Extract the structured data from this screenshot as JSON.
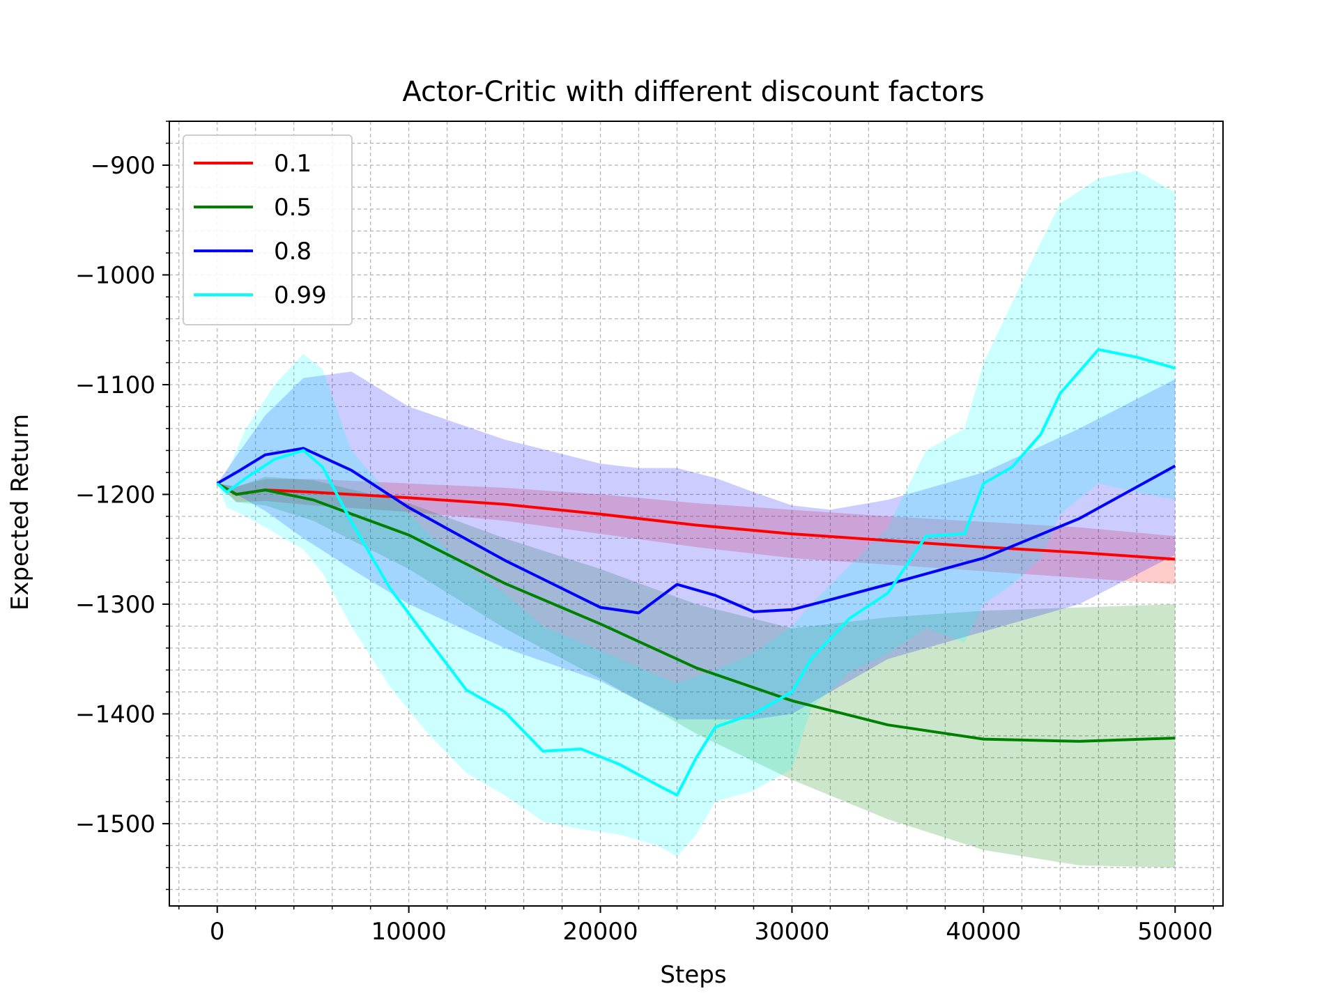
{
  "chart_data": {
    "type": "line",
    "title": "Actor-Critic with different discount factors",
    "xlabel": "Steps",
    "ylabel": "Expected Return",
    "xlim": [
      -2500,
      52500
    ],
    "ylim": [
      -1575,
      -860
    ],
    "xticks": [
      0,
      10000,
      20000,
      30000,
      40000,
      50000
    ],
    "xtick_labels": [
      "0",
      "10000",
      "20000",
      "30000",
      "40000",
      "50000"
    ],
    "yticks": [
      -1500,
      -1400,
      -1300,
      -1200,
      -1100,
      -1000,
      -900
    ],
    "ytick_labels": [
      "−1500",
      "−1400",
      "−1300",
      "−1200",
      "−1100",
      "−1000",
      "−900"
    ],
    "grid": true,
    "minor_grid": true,
    "legend_position": "top-left",
    "series": [
      {
        "name": "0.1",
        "color": "#ff0000",
        "x": [
          0,
          1000,
          2500,
          5000,
          10000,
          15000,
          20000,
          25000,
          30000,
          35000,
          40000,
          45000,
          50000
        ],
        "y": [
          -1190,
          -1200,
          -1196,
          -1198,
          -1203,
          -1209,
          -1218,
          -1228,
          -1236,
          -1242,
          -1248,
          -1253,
          -1259
        ],
        "band_upper": [
          -1190,
          -1193,
          -1186,
          -1186,
          -1190,
          -1194,
          -1200,
          -1208,
          -1214,
          -1220,
          -1225,
          -1230,
          -1238
        ],
        "band_lower": [
          -1190,
          -1207,
          -1206,
          -1210,
          -1216,
          -1224,
          -1236,
          -1248,
          -1258,
          -1264,
          -1270,
          -1276,
          -1282
        ]
      },
      {
        "name": "0.5",
        "color": "#008000",
        "x": [
          0,
          1000,
          2500,
          5000,
          10000,
          15000,
          20000,
          25000,
          30000,
          35000,
          40000,
          45000,
          50000
        ],
        "y": [
          -1190,
          -1200,
          -1196,
          -1205,
          -1237,
          -1281,
          -1318,
          -1358,
          -1388,
          -1410,
          -1423,
          -1425,
          -1422
        ],
        "band_upper": [
          -1190,
          -1193,
          -1184,
          -1187,
          -1208,
          -1240,
          -1268,
          -1300,
          -1322,
          -1312,
          -1306,
          -1303,
          -1300
        ],
        "band_lower": [
          -1190,
          -1207,
          -1210,
          -1224,
          -1268,
          -1322,
          -1368,
          -1418,
          -1460,
          -1496,
          -1524,
          -1538,
          -1540
        ]
      },
      {
        "name": "0.8",
        "color": "#0000ff",
        "x": [
          0,
          1000,
          2500,
          4500,
          7000,
          10000,
          15000,
          20000,
          22000,
          24000,
          26000,
          28000,
          30000,
          32000,
          35000,
          40000,
          45000,
          50000
        ],
        "y": [
          -1190,
          -1180,
          -1164,
          -1158,
          -1178,
          -1212,
          -1260,
          -1303,
          -1308,
          -1282,
          -1292,
          -1307,
          -1305,
          -1296,
          -1282,
          -1258,
          -1222,
          -1174
        ],
        "band_upper": [
          -1190,
          -1165,
          -1128,
          -1094,
          -1088,
          -1120,
          -1150,
          -1172,
          -1176,
          -1176,
          -1185,
          -1198,
          -1210,
          -1214,
          -1205,
          -1180,
          -1140,
          -1095
        ],
        "band_lower": [
          -1190,
          -1200,
          -1215,
          -1240,
          -1268,
          -1300,
          -1340,
          -1370,
          -1388,
          -1405,
          -1405,
          -1405,
          -1400,
          -1380,
          -1350,
          -1325,
          -1300,
          -1255
        ]
      },
      {
        "name": "0.99",
        "color": "#00ffff",
        "x": [
          0,
          500,
          1500,
          3000,
          4500,
          5500,
          7000,
          9000,
          11000,
          13000,
          15000,
          17000,
          19000,
          21000,
          23000,
          24000,
          25000,
          26000,
          28000,
          30000,
          31000,
          33000,
          35000,
          37000,
          39000,
          40000,
          41500,
          43000,
          44000,
          46000,
          48000,
          50000
        ],
        "y": [
          -1190,
          -1198,
          -1185,
          -1168,
          -1160,
          -1175,
          -1225,
          -1285,
          -1332,
          -1378,
          -1398,
          -1434,
          -1432,
          -1446,
          -1465,
          -1474,
          -1440,
          -1412,
          -1400,
          -1380,
          -1350,
          -1313,
          -1290,
          -1238,
          -1236,
          -1190,
          -1175,
          -1145,
          -1108,
          -1068,
          -1075,
          -1085
        ],
        "band_upper": [
          -1190,
          -1180,
          -1140,
          -1100,
          -1072,
          -1086,
          -1160,
          -1200,
          -1235,
          -1265,
          -1290,
          -1320,
          -1335,
          -1350,
          -1365,
          -1372,
          -1366,
          -1360,
          -1345,
          -1320,
          -1300,
          -1265,
          -1230,
          -1160,
          -1140,
          -1080,
          -1025,
          -970,
          -935,
          -912,
          -905,
          -925
        ],
        "band_lower": [
          -1190,
          -1212,
          -1220,
          -1235,
          -1250,
          -1272,
          -1320,
          -1375,
          -1418,
          -1454,
          -1474,
          -1498,
          -1505,
          -1510,
          -1520,
          -1530,
          -1510,
          -1480,
          -1470,
          -1450,
          -1395,
          -1362,
          -1345,
          -1322,
          -1335,
          -1300,
          -1282,
          -1258,
          -1218,
          -1190,
          -1198,
          -1205
        ]
      }
    ]
  }
}
